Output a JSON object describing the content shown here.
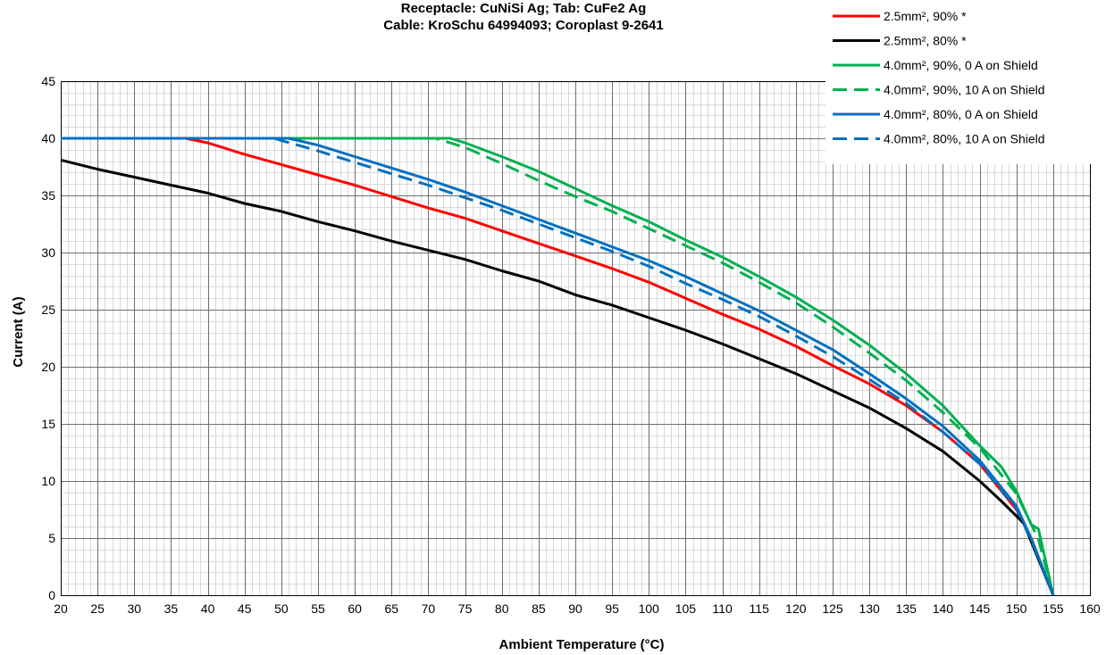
{
  "chart_data": {
    "type": "line",
    "title_lines": [
      "Receptacle: CuNiSi Ag; Tab: CuFe2 Ag",
      "Cable: KroSchu 64994093; Coroplast 9-2641"
    ],
    "xlabel": "Ambient Temperature (°C)",
    "ylabel": "Current (A)",
    "xlim": [
      20,
      160
    ],
    "ylim": [
      0,
      45
    ],
    "x_major_step": 5,
    "y_major_step": 5,
    "x_minor_step": 1,
    "y_minor_step": 1,
    "x_ticks": [
      "20",
      "25",
      "30",
      "35",
      "40",
      "45",
      "50",
      "55",
      "60",
      "65",
      "70",
      "75",
      "80",
      "85",
      "90",
      "95",
      "100",
      "105",
      "110",
      "115",
      "120",
      "125",
      "130",
      "135",
      "140",
      "145",
      "150",
      "155",
      "160"
    ],
    "y_ticks": [
      "0",
      "5",
      "10",
      "15",
      "20",
      "25",
      "30",
      "35",
      "40",
      "45"
    ],
    "grid": true,
    "legend_position": "top-right",
    "series": [
      {
        "name": "2.5mm², 90% *",
        "color": "#ff0000",
        "dashed": false,
        "points": [
          [
            20,
            40
          ],
          [
            37,
            40
          ],
          [
            40,
            39.6
          ],
          [
            45,
            38.6
          ],
          [
            50,
            37.7
          ],
          [
            55,
            36.8
          ],
          [
            60,
            35.9
          ],
          [
            65,
            34.9
          ],
          [
            70,
            33.9
          ],
          [
            75,
            33.0
          ],
          [
            80,
            31.9
          ],
          [
            85,
            30.8
          ],
          [
            90,
            29.7
          ],
          [
            95,
            28.6
          ],
          [
            100,
            27.4
          ],
          [
            105,
            26.0
          ],
          [
            110,
            24.6
          ],
          [
            115,
            23.3
          ],
          [
            120,
            21.8
          ],
          [
            125,
            20.1
          ],
          [
            130,
            18.5
          ],
          [
            135,
            16.6
          ],
          [
            140,
            14.3
          ],
          [
            145,
            11.5
          ],
          [
            150,
            7.5
          ],
          [
            152,
            5.0
          ],
          [
            155,
            0
          ]
        ]
      },
      {
        "name": "2.5mm², 80% *",
        "color": "#000000",
        "dashed": false,
        "points": [
          [
            20,
            38.1
          ],
          [
            25,
            37.3
          ],
          [
            30,
            36.6
          ],
          [
            35,
            35.9
          ],
          [
            40,
            35.2
          ],
          [
            45,
            34.3
          ],
          [
            50,
            33.6
          ],
          [
            55,
            32.7
          ],
          [
            60,
            31.9
          ],
          [
            65,
            31.0
          ],
          [
            70,
            30.2
          ],
          [
            75,
            29.4
          ],
          [
            80,
            28.4
          ],
          [
            85,
            27.5
          ],
          [
            90,
            26.3
          ],
          [
            95,
            25.4
          ],
          [
            100,
            24.3
          ],
          [
            105,
            23.2
          ],
          [
            110,
            22.0
          ],
          [
            115,
            20.7
          ],
          [
            120,
            19.4
          ],
          [
            125,
            17.9
          ],
          [
            130,
            16.4
          ],
          [
            135,
            14.6
          ],
          [
            140,
            12.6
          ],
          [
            145,
            10.0
          ],
          [
            148,
            8.2
          ],
          [
            151,
            6.3
          ],
          [
            155,
            0
          ]
        ]
      },
      {
        "name": "4.0mm², 90%, 0 A on Shield",
        "color": "#00b050",
        "dashed": false,
        "points": [
          [
            20,
            40
          ],
          [
            73,
            40
          ],
          [
            75,
            39.6
          ],
          [
            80,
            38.4
          ],
          [
            85,
            37.1
          ],
          [
            90,
            35.6
          ],
          [
            95,
            34.1
          ],
          [
            100,
            32.7
          ],
          [
            105,
            31.1
          ],
          [
            110,
            29.6
          ],
          [
            115,
            27.9
          ],
          [
            120,
            26.1
          ],
          [
            125,
            24.1
          ],
          [
            130,
            21.9
          ],
          [
            135,
            19.4
          ],
          [
            140,
            16.6
          ],
          [
            145,
            13.1
          ],
          [
            148,
            11.2
          ],
          [
            150,
            9.1
          ],
          [
            152,
            6.2
          ],
          [
            153,
            5.8
          ],
          [
            155,
            0
          ]
        ]
      },
      {
        "name": "4.0mm², 90%, 10 A on Shield",
        "color": "#00b050",
        "dashed": true,
        "points": [
          [
            20,
            40
          ],
          [
            71,
            40
          ],
          [
            75,
            39.2
          ],
          [
            80,
            37.8
          ],
          [
            85,
            36.3
          ],
          [
            90,
            34.9
          ],
          [
            95,
            33.6
          ],
          [
            100,
            32.1
          ],
          [
            105,
            30.6
          ],
          [
            110,
            29.1
          ],
          [
            115,
            27.4
          ],
          [
            120,
            25.6
          ],
          [
            125,
            23.5
          ],
          [
            130,
            21.2
          ],
          [
            135,
            18.8
          ],
          [
            140,
            16.0
          ],
          [
            145,
            12.9
          ],
          [
            150,
            8.9
          ],
          [
            153,
            4.9
          ],
          [
            155,
            0
          ]
        ]
      },
      {
        "name": "4.0mm², 80%, 0 A on Shield",
        "color": "#0070c0",
        "dashed": false,
        "points": [
          [
            20,
            40
          ],
          [
            51,
            40
          ],
          [
            55,
            39.4
          ],
          [
            60,
            38.4
          ],
          [
            65,
            37.4
          ],
          [
            70,
            36.4
          ],
          [
            75,
            35.3
          ],
          [
            80,
            34.1
          ],
          [
            85,
            32.9
          ],
          [
            90,
            31.7
          ],
          [
            95,
            30.5
          ],
          [
            100,
            29.3
          ],
          [
            105,
            27.9
          ],
          [
            110,
            26.4
          ],
          [
            115,
            24.9
          ],
          [
            120,
            23.2
          ],
          [
            125,
            21.5
          ],
          [
            130,
            19.4
          ],
          [
            135,
            17.2
          ],
          [
            140,
            14.8
          ],
          [
            145,
            11.8
          ],
          [
            150,
            7.8
          ],
          [
            152,
            5.0
          ],
          [
            155,
            0
          ]
        ]
      },
      {
        "name": "4.0mm², 80%, 10 A on Shield",
        "color": "#0070c0",
        "dashed": true,
        "points": [
          [
            20,
            40
          ],
          [
            49,
            40
          ],
          [
            55,
            38.9
          ],
          [
            60,
            37.9
          ],
          [
            65,
            36.9
          ],
          [
            70,
            35.9
          ],
          [
            75,
            34.8
          ],
          [
            80,
            33.7
          ],
          [
            85,
            32.5
          ],
          [
            90,
            31.3
          ],
          [
            95,
            30.1
          ],
          [
            100,
            28.8
          ],
          [
            105,
            27.3
          ],
          [
            110,
            25.9
          ],
          [
            115,
            24.4
          ],
          [
            120,
            22.7
          ],
          [
            125,
            20.9
          ],
          [
            130,
            18.9
          ],
          [
            135,
            16.8
          ],
          [
            140,
            14.3
          ],
          [
            145,
            11.5
          ],
          [
            150,
            7.6
          ],
          [
            152,
            4.9
          ],
          [
            155,
            0
          ]
        ]
      }
    ]
  }
}
